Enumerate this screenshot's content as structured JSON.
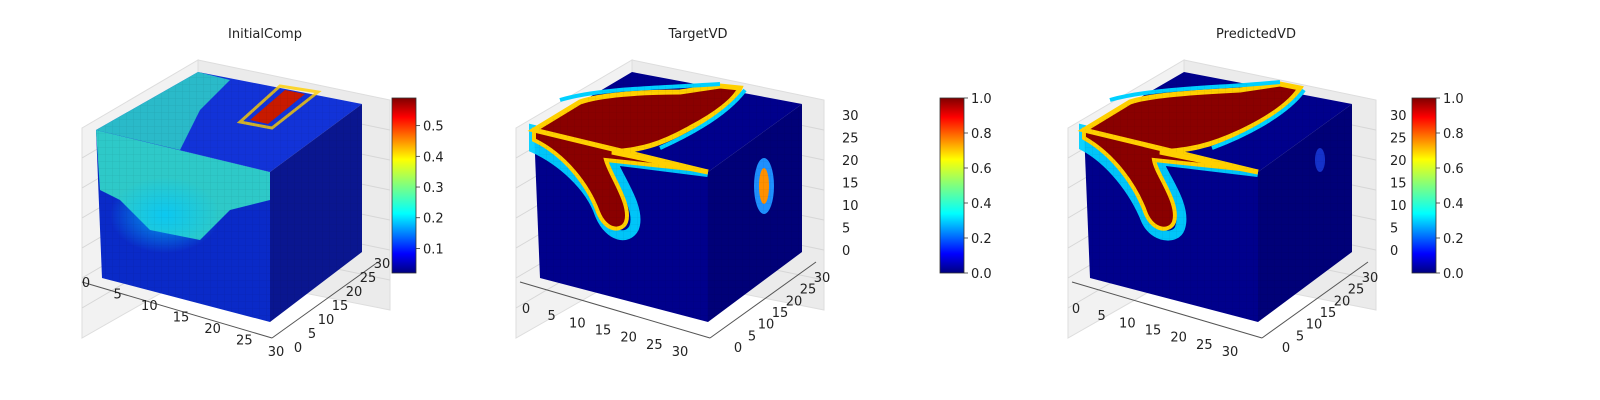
{
  "colormap": [
    "#00007f",
    "#0000ff",
    "#007fff",
    "#00ffff",
    "#7fff7f",
    "#ffff00",
    "#ff7f00",
    "#ff0000",
    "#7f0000"
  ],
  "chart_data": [
    {
      "type": "heatmap",
      "subtype": "3d-voxel-cube",
      "title": "InitialComp",
      "x_ticks": [
        "0",
        "5",
        "10",
        "15",
        "20",
        "25",
        "30"
      ],
      "y_ticks": [
        "0",
        "5",
        "10",
        "15",
        "20",
        "25",
        "30"
      ],
      "z_ticks": [],
      "colorbar": {
        "min": 0.02,
        "max": 0.59,
        "ticks": [
          "0.1",
          "0.2",
          "0.3",
          "0.4",
          "0.5"
        ],
        "tick_values": [
          0.1,
          0.2,
          0.3,
          0.4,
          0.5
        ]
      },
      "grid": true
    },
    {
      "type": "heatmap",
      "subtype": "3d-voxel-cube",
      "title": "TargetVD",
      "x_ticks": [
        "0",
        "5",
        "10",
        "15",
        "20",
        "25",
        "30"
      ],
      "y_ticks": [
        "0",
        "5",
        "10",
        "15",
        "20",
        "25",
        "30"
      ],
      "z_ticks": [
        "0",
        "5",
        "10",
        "15",
        "20",
        "25",
        "30"
      ],
      "colorbar": {
        "min": 0.0,
        "max": 1.0,
        "ticks": [
          "0.0",
          "0.2",
          "0.4",
          "0.6",
          "0.8",
          "1.0"
        ],
        "tick_values": [
          0.0,
          0.2,
          0.4,
          0.6,
          0.8,
          1.0
        ]
      },
      "grid": true
    },
    {
      "type": "heatmap",
      "subtype": "3d-voxel-cube",
      "title": "PredictedVD",
      "x_ticks": [
        "0",
        "5",
        "10",
        "15",
        "20",
        "25",
        "30"
      ],
      "y_ticks": [
        "0",
        "5",
        "10",
        "15",
        "20",
        "25",
        "30"
      ],
      "z_ticks": [
        "0",
        "5",
        "10",
        "15",
        "20",
        "25",
        "30"
      ],
      "colorbar": {
        "min": 0.0,
        "max": 1.0,
        "ticks": [
          "0.0",
          "0.2",
          "0.4",
          "0.6",
          "0.8",
          "1.0"
        ],
        "tick_values": [
          0.0,
          0.2,
          0.4,
          0.6,
          0.8,
          1.0
        ]
      },
      "grid": true
    }
  ]
}
